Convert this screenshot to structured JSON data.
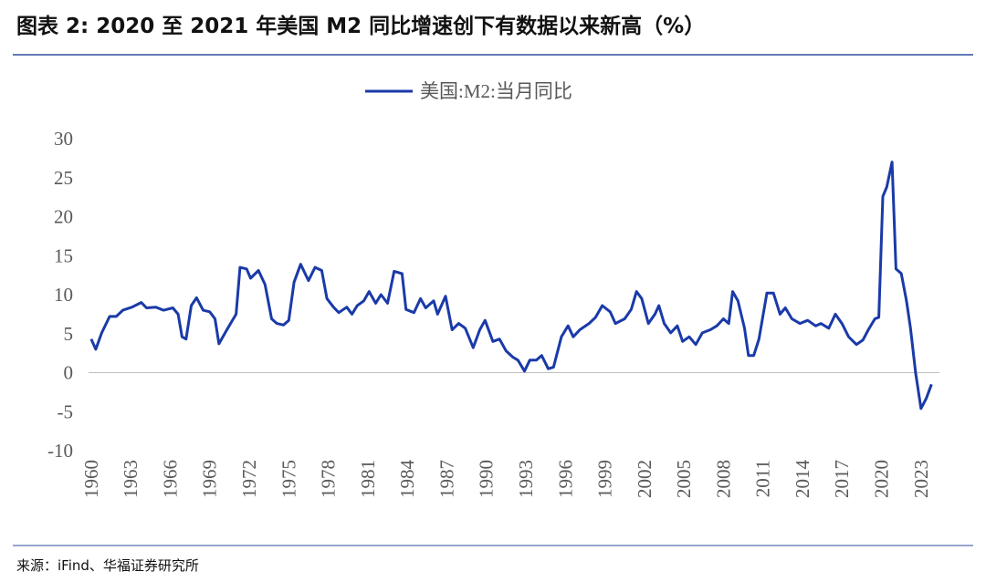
{
  "chart_data": {
    "type": "line",
    "title": "图表 2:  2020 至 2021 年美国 M2 同比增速创下有数据以来新高（%）",
    "source": "来源：iFind、华福证券研究所",
    "series": [
      {
        "name": "美国:M2:当月同比",
        "color": "#1a3aa8",
        "x": [
          1960.0,
          1960.35,
          1960.8,
          1961.4,
          1961.9,
          1962.4,
          1963.1,
          1963.8,
          1964.2,
          1964.9,
          1965.5,
          1966.2,
          1966.6,
          1966.9,
          1967.2,
          1967.6,
          1968.0,
          1968.5,
          1969.0,
          1969.4,
          1969.7,
          1970.3,
          1971.0,
          1971.3,
          1971.8,
          1972.1,
          1972.7,
          1973.2,
          1973.7,
          1974.1,
          1974.6,
          1975.0,
          1975.4,
          1975.9,
          1976.5,
          1977.0,
          1977.5,
          1977.9,
          1978.4,
          1978.8,
          1979.4,
          1979.8,
          1980.2,
          1980.7,
          1981.1,
          1981.6,
          1982.0,
          1982.5,
          1983.0,
          1983.6,
          1983.9,
          1984.5,
          1985.0,
          1985.4,
          1986.0,
          1986.3,
          1986.9,
          1987.4,
          1987.9,
          1988.4,
          1989.0,
          1989.5,
          1989.9,
          1990.5,
          1991.0,
          1991.5,
          1992.0,
          1992.4,
          1992.9,
          1993.3,
          1993.8,
          1994.2,
          1994.7,
          1995.1,
          1995.7,
          1996.2,
          1996.6,
          1997.1,
          1997.8,
          1998.3,
          1998.8,
          1999.4,
          1999.8,
          2000.5,
          2001.0,
          2001.4,
          2001.8,
          2002.3,
          2002.8,
          2003.1,
          2003.5,
          2004.0,
          2004.5,
          2004.9,
          2005.4,
          2005.9,
          2006.4,
          2007.0,
          2007.5,
          2008.0,
          2008.4,
          2008.7,
          2009.1,
          2009.6,
          2009.9,
          2010.3,
          2010.7,
          2011.3,
          2011.8,
          2012.3,
          2012.7,
          2013.2,
          2013.8,
          2014.4,
          2015.0,
          2015.4,
          2016.0,
          2016.5,
          2017.0,
          2017.5,
          2018.1,
          2018.6,
          2019.0,
          2019.5,
          2019.8,
          2020.1,
          2020.4,
          2020.8,
          2021.1,
          2021.5,
          2021.9,
          2022.2,
          2022.6,
          2023.0,
          2023.4,
          2023.8
        ],
        "values": [
          4.3,
          3.0,
          5.1,
          7.2,
          7.2,
          8.0,
          8.4,
          9.0,
          8.3,
          8.4,
          8.0,
          8.3,
          7.5,
          4.6,
          4.3,
          8.6,
          9.6,
          8.0,
          7.8,
          6.9,
          3.7,
          5.5,
          7.5,
          13.5,
          13.3,
          12.1,
          13.1,
          11.3,
          6.9,
          6.3,
          6.1,
          6.7,
          11.6,
          13.9,
          11.8,
          13.5,
          13.1,
          9.5,
          8.4,
          7.7,
          8.4,
          7.5,
          8.6,
          9.2,
          10.4,
          8.9,
          10.0,
          8.9,
          13.0,
          12.7,
          8.1,
          7.7,
          9.5,
          8.3,
          9.2,
          7.5,
          9.8,
          5.5,
          6.3,
          5.7,
          3.2,
          5.5,
          6.7,
          4.0,
          4.3,
          2.8,
          2.0,
          1.6,
          0.2,
          1.6,
          1.6,
          2.2,
          0.5,
          0.7,
          4.6,
          6.0,
          4.6,
          5.5,
          6.3,
          7.1,
          8.6,
          7.8,
          6.3,
          6.9,
          8.1,
          10.4,
          9.5,
          6.3,
          7.5,
          8.6,
          6.3,
          5.1,
          6.0,
          4.0,
          4.6,
          3.6,
          5.1,
          5.5,
          6.0,
          6.9,
          6.3,
          10.4,
          9.2,
          5.7,
          2.2,
          2.2,
          4.3,
          10.2,
          10.2,
          7.5,
          8.3,
          6.9,
          6.3,
          6.7,
          6.0,
          6.3,
          5.7,
          7.5,
          6.3,
          4.6,
          3.6,
          4.2,
          5.5,
          6.9,
          7.1,
          22.6,
          23.8,
          27.0,
          13.3,
          12.7,
          9.2,
          5.7,
          -0.1,
          -4.6,
          -3.3,
          -1.5
        ]
      }
    ],
    "xlim": [
      1959.8,
      2024.4
    ],
    "xticks": [
      1960,
      1963,
      1966,
      1969,
      1972,
      1975,
      1978,
      1981,
      1984,
      1987,
      1990,
      1993,
      1996,
      1999,
      2002,
      2005,
      2008,
      2011,
      2014,
      2017,
      2020,
      2023
    ],
    "ylim": [
      -10,
      30
    ],
    "yticks": [
      -10,
      -5,
      0,
      5,
      10,
      15,
      20,
      25,
      30
    ],
    "legend": "top"
  }
}
